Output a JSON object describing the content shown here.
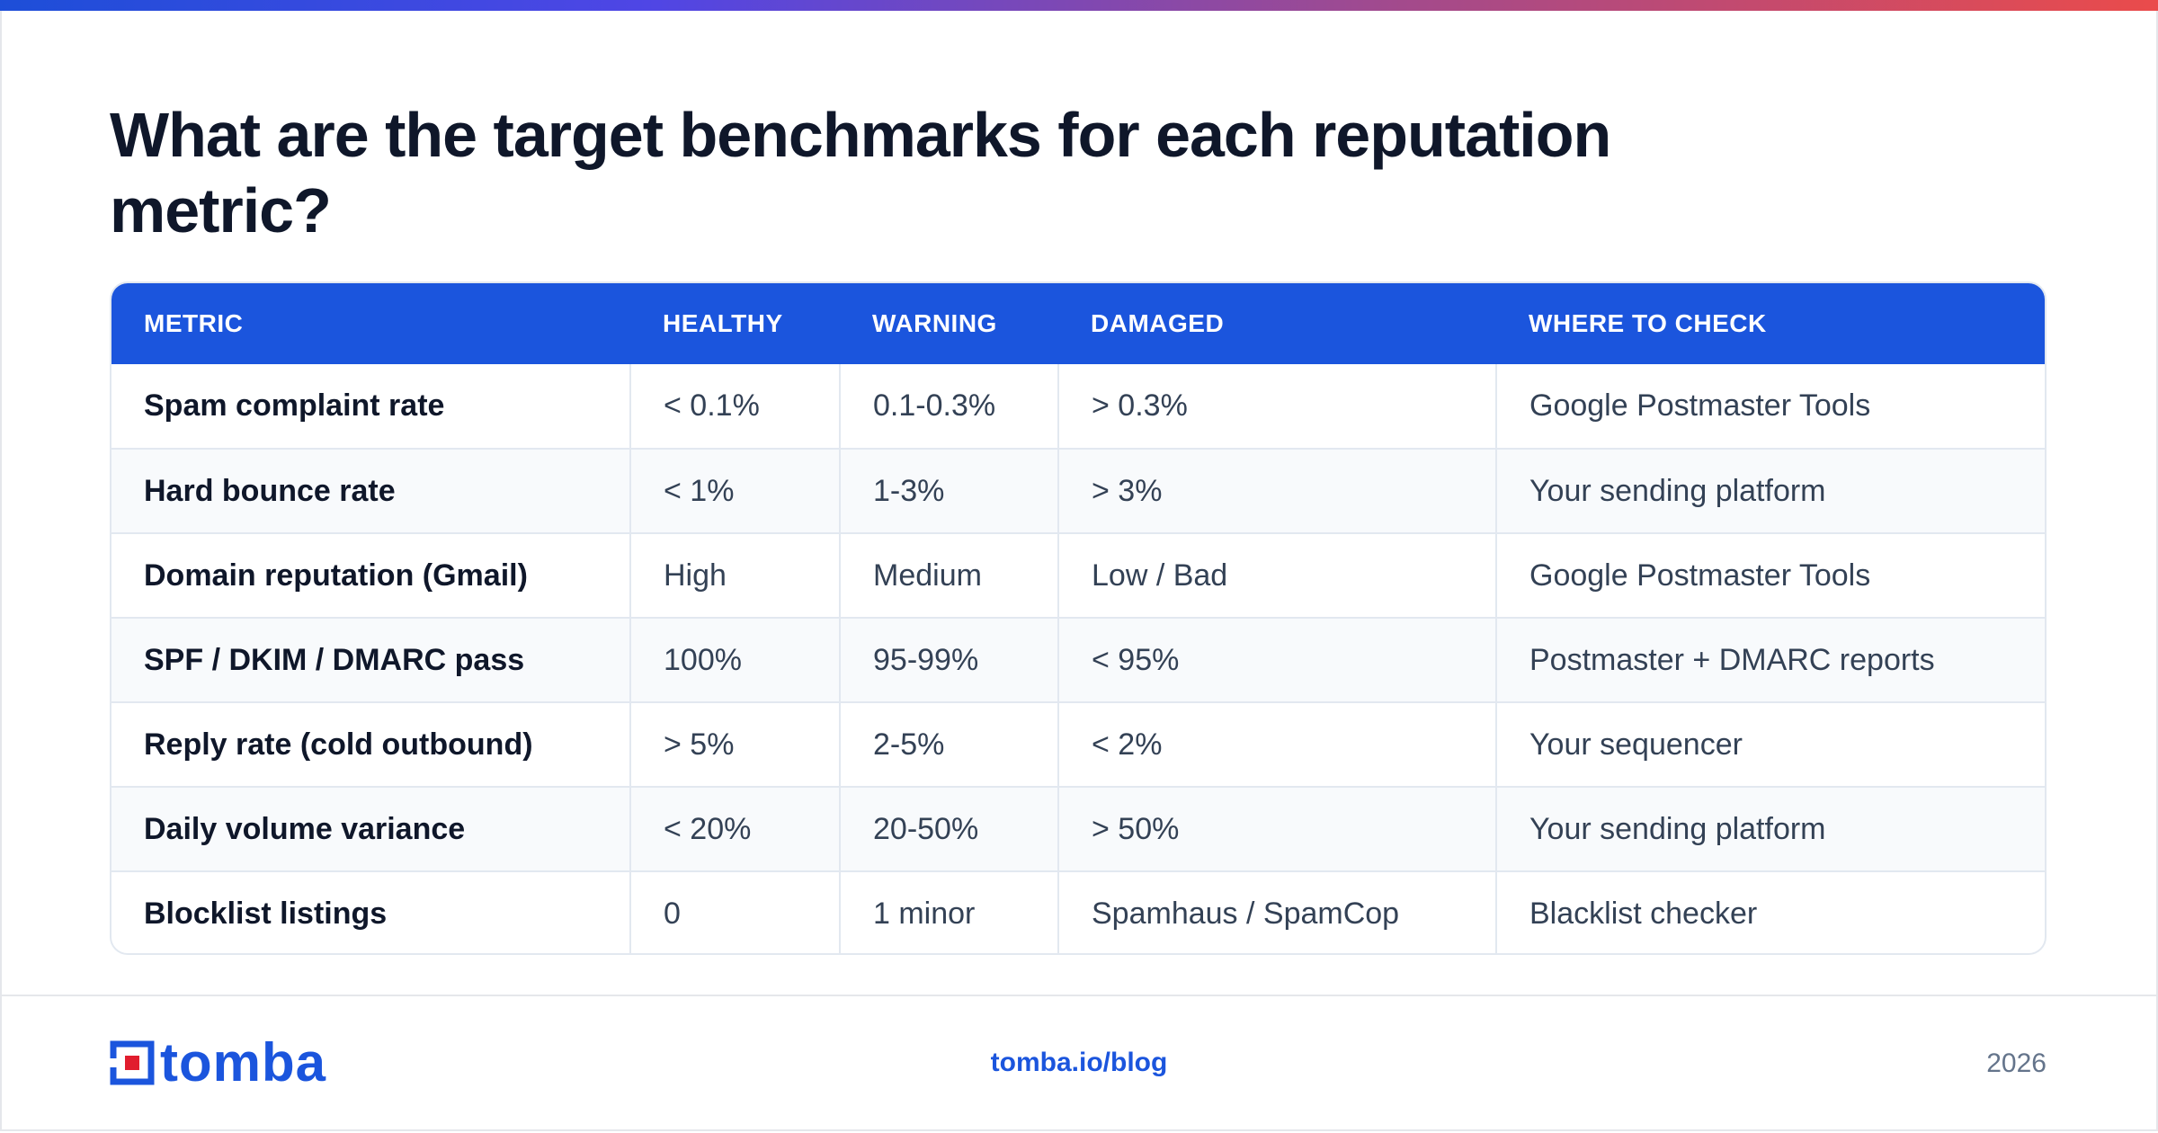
{
  "title": "What are the target benchmarks for each reputation metric?",
  "table": {
    "headers": [
      "METRIC",
      "HEALTHY",
      "WARNING",
      "DAMAGED",
      "WHERE TO CHECK"
    ],
    "rows": [
      [
        "Spam complaint rate",
        "< 0.1%",
        "0.1-0.3%",
        "> 0.3%",
        "Google Postmaster Tools"
      ],
      [
        "Hard bounce rate",
        "< 1%",
        "1-3%",
        "> 3%",
        "Your sending platform"
      ],
      [
        "Domain reputation (Gmail)",
        "High",
        "Medium",
        "Low / Bad",
        "Google Postmaster Tools"
      ],
      [
        "SPF / DKIM / DMARC pass",
        "100%",
        "95-99%",
        "< 95%",
        "Postmaster + DMARC reports"
      ],
      [
        "Reply rate (cold outbound)",
        "> 5%",
        "2-5%",
        "< 2%",
        "Your sequencer"
      ],
      [
        "Daily volume variance",
        "< 20%",
        "20-50%",
        "> 50%",
        "Your sending platform"
      ],
      [
        "Blocklist listings",
        "0",
        "1 minor",
        "Spamhaus / SpamCop",
        "Blacklist checker"
      ]
    ]
  },
  "footer": {
    "logo_text": "tomba",
    "link": "tomba.io/blog",
    "year": "2026"
  },
  "colors": {
    "brand_blue": "#1b55dd",
    "brand_red": "#e11d2e",
    "title": "#0f172a"
  }
}
